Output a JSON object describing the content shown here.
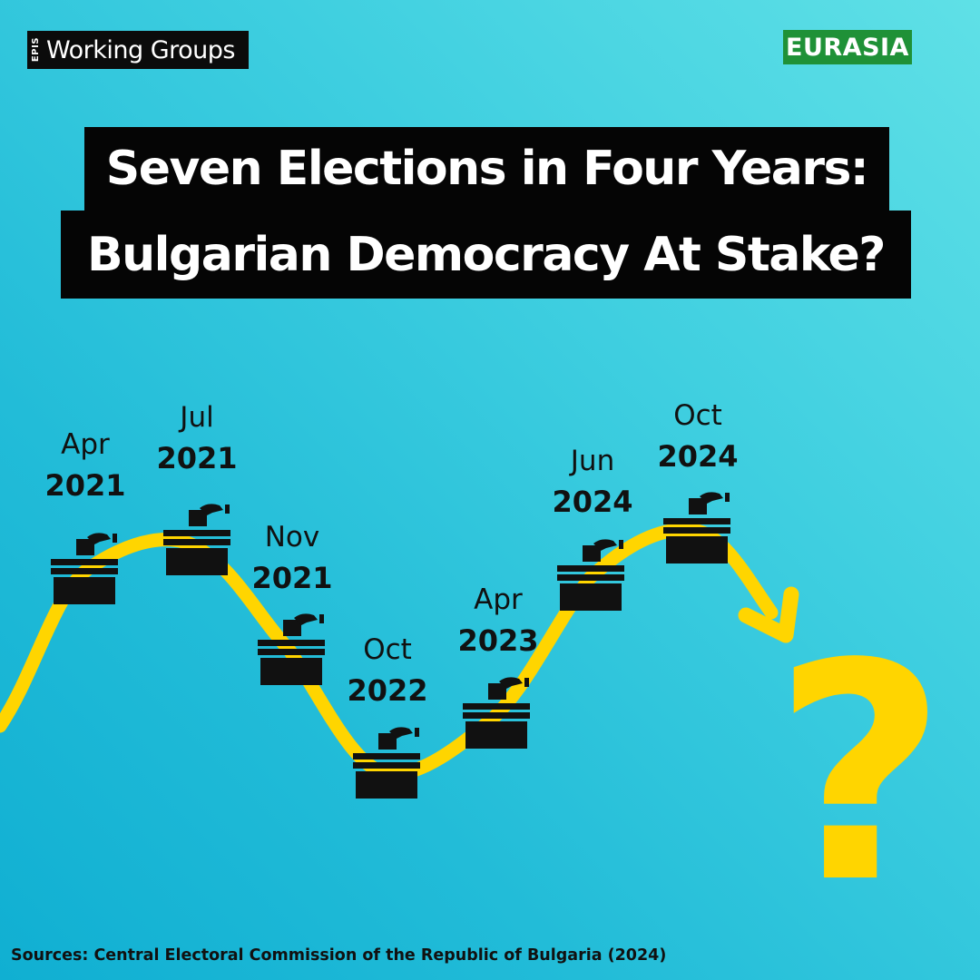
{
  "header": {
    "brand_tag": "EPIS",
    "brand_name": "Working Groups",
    "region_badge": "EURASIA",
    "title_line1": "Seven Elections in Four Years:",
    "title_line2": "Bulgarian Democracy At Stake?"
  },
  "elections": [
    {
      "month": "Apr",
      "year": "2021"
    },
    {
      "month": "Jul",
      "year": "2021"
    },
    {
      "month": "Nov",
      "year": "2021"
    },
    {
      "month": "Oct",
      "year": "2022"
    },
    {
      "month": "Apr",
      "year": "2023"
    },
    {
      "month": "Jun",
      "year": "2024"
    },
    {
      "month": "Oct",
      "year": "2024"
    }
  ],
  "question_mark": "?",
  "footer": {
    "source": "Sources: Central Electoral Commission of the Republic of Bulgaria (2024)"
  },
  "colors": {
    "background": "#22bcd8",
    "wave": "#ffd500",
    "title_bar": "#050505",
    "region_badge": "#1f9137"
  },
  "icons": [
    "ballot-box-icon",
    "arrow-icon"
  ]
}
